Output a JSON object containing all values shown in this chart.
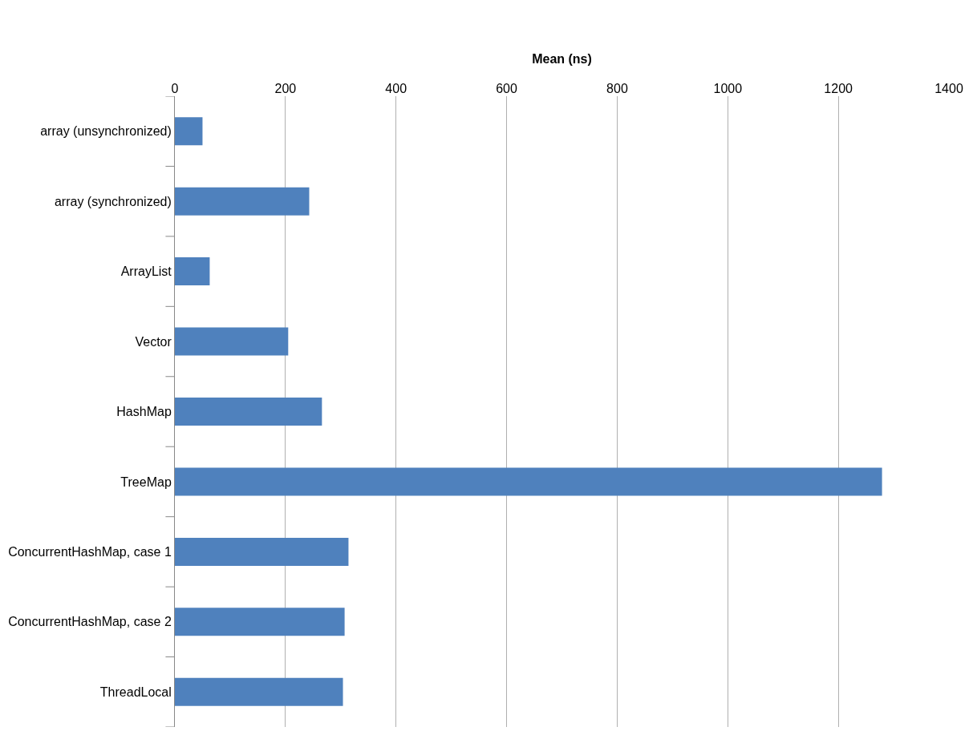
{
  "chart_data": {
    "type": "bar",
    "orientation": "horizontal",
    "xlabel": "Mean (ns)",
    "categories": [
      "array (unsynchronized)",
      "array (synchronized)",
      "ArrayList",
      "Vector",
      "HashMap",
      "TreeMap",
      "ConcurrentHashMap, case 1",
      "ConcurrentHashMap, case 2",
      "ThreadLocal"
    ],
    "values": [
      50,
      243,
      63,
      205,
      266,
      1279,
      314,
      307,
      304
    ],
    "color": "#4f81bd",
    "xlim": [
      0,
      1400
    ],
    "xticks": [
      0,
      200,
      400,
      600,
      800,
      1000,
      1200,
      1400
    ],
    "grid": "x",
    "legend": false
  }
}
